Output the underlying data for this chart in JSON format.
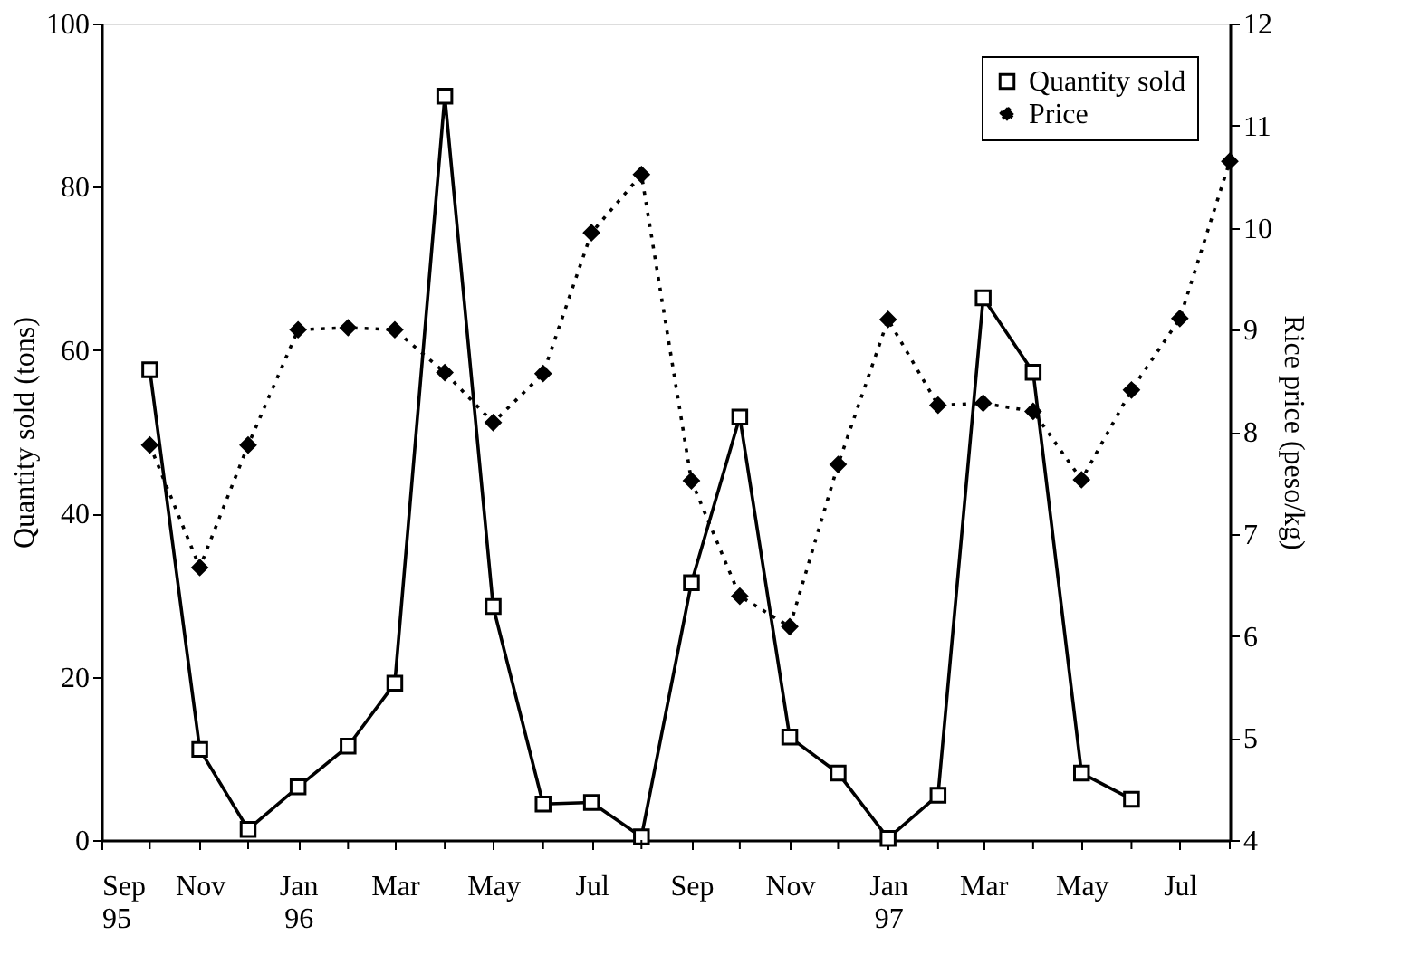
{
  "chart_data": {
    "type": "line",
    "xlabel": null,
    "ylabel": "Quantity sold (tons)",
    "y2label": "Rice price (peso/kg)",
    "ylim": [
      0,
      100
    ],
    "yticks": [
      0,
      20,
      40,
      60,
      80,
      100
    ],
    "y2lim": [
      4,
      12
    ],
    "y2ticks": [
      4,
      5,
      6,
      7,
      8,
      9,
      10,
      11,
      12
    ],
    "xlim": [
      "1995-09",
      "1997-08"
    ],
    "xticks": [
      {
        "value": "1995-09",
        "label": "Sep\n95"
      },
      {
        "value": "1995-10",
        "label": null
      },
      {
        "value": "1995-11",
        "label": "Nov"
      },
      {
        "value": "1995-12",
        "label": null
      },
      {
        "value": "1996-01",
        "label": "Jan\n96"
      },
      {
        "value": "1996-02",
        "label": null
      },
      {
        "value": "1996-03",
        "label": "Mar"
      },
      {
        "value": "1996-04",
        "label": null
      },
      {
        "value": "1996-05",
        "label": "May"
      },
      {
        "value": "1996-06",
        "label": null
      },
      {
        "value": "1996-07",
        "label": "Jul"
      },
      {
        "value": "1996-08",
        "label": null
      },
      {
        "value": "1996-09",
        "label": "Sep"
      },
      {
        "value": "1996-10",
        "label": null
      },
      {
        "value": "1996-11",
        "label": "Nov"
      },
      {
        "value": "1996-12",
        "label": null
      },
      {
        "value": "1997-01",
        "label": "Jan\n97"
      },
      {
        "value": "1997-02",
        "label": null
      },
      {
        "value": "1997-03",
        "label": "Mar"
      },
      {
        "value": "1997-04",
        "label": null
      },
      {
        "value": "1997-05",
        "label": "May"
      },
      {
        "value": "1997-06",
        "label": null
      },
      {
        "value": "1997-07",
        "label": "Jul"
      },
      {
        "value": "1997-08",
        "label": null
      }
    ],
    "grid": false,
    "legend": "top right",
    "series": [
      {
        "name": "Quantity sold",
        "color": "#000000",
        "marker": "square",
        "line_style": "solid",
        "x": [
          "1995-10",
          "1995-11",
          "1995-12",
          "1996-01",
          "1996-02",
          "1996-03",
          "1996-04",
          "1996-05",
          "1996-06",
          "1996-07",
          "1996-08",
          "1996-09",
          "1996-10",
          "1996-11",
          "1996-12",
          "1997-01",
          "1997-02",
          "1997-03",
          "1997-04",
          "1997-05",
          "1997-06"
        ],
        "values": [
          57.6,
          11.1,
          1.3,
          6.5,
          11.5,
          19.2,
          91.1,
          28.6,
          4.4,
          4.6,
          0.4,
          31.5,
          51.8,
          12.6,
          8.2,
          0.2,
          5.5,
          66.4,
          57.3,
          8.2,
          5.0
        ]
      },
      {
        "name": "Price",
        "color": "#000000",
        "marker": "diamond",
        "line_style": "dotted",
        "axis": "y2",
        "x": [
          "1995-10",
          "1995-11",
          "1995-12",
          "1996-01",
          "1996-02",
          "1996-03",
          "1996-04",
          "1996-05",
          "1996-06",
          "1996-07",
          "1996-08",
          "1996-09",
          "1996-10",
          "1996-11",
          "1996-12",
          "1997-01",
          "1997-02",
          "1997-03",
          "1997-04",
          "1997-05",
          "1997-06",
          "1997-07",
          "1997-08"
        ],
        "values": [
          7.87,
          6.67,
          7.87,
          9.0,
          9.02,
          9.0,
          8.58,
          8.09,
          8.57,
          9.95,
          10.52,
          7.52,
          6.39,
          6.09,
          7.68,
          9.1,
          8.26,
          8.28,
          8.2,
          7.53,
          8.41,
          9.11,
          10.65
        ]
      }
    ]
  }
}
